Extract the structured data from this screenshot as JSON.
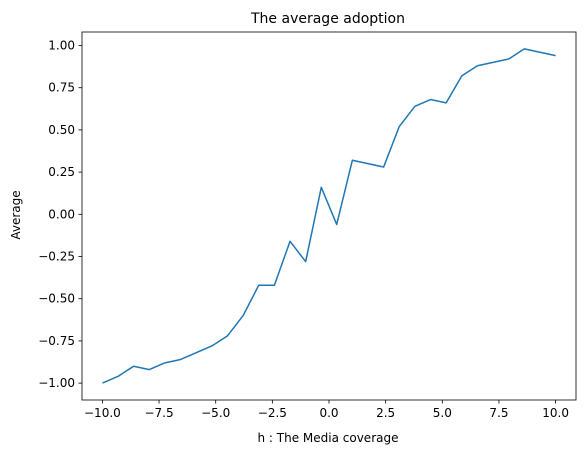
{
  "chart_data": {
    "type": "line",
    "title": "The average adoption",
    "xlabel": "h : The Media coverage",
    "ylabel": "Average",
    "xlim": [
      -10.9,
      10.9
    ],
    "ylim": [
      -1.1,
      1.08
    ],
    "grid": false,
    "x_ticks": [
      -10.0,
      -7.5,
      -5.0,
      -2.5,
      0.0,
      2.5,
      5.0,
      7.5,
      10.0
    ],
    "x_tick_labels": [
      "−10.0",
      "−7.5",
      "−5.0",
      "−2.5",
      "0.0",
      "2.5",
      "5.0",
      "7.5",
      "10.0"
    ],
    "y_ticks": [
      -1.0,
      -0.75,
      -0.5,
      -0.25,
      0.0,
      0.25,
      0.5,
      0.75,
      1.0
    ],
    "y_tick_labels": [
      "−1.00",
      "−0.75",
      "−0.50",
      "−0.25",
      "0.00",
      "0.25",
      "0.50",
      "0.75",
      "1.00"
    ],
    "series": [
      {
        "color": "#1f77b4",
        "x": [
          -10.0,
          -9.31,
          -8.62,
          -7.93,
          -7.24,
          -6.55,
          -5.86,
          -5.17,
          -4.48,
          -3.79,
          -3.1,
          -2.41,
          -1.72,
          -1.03,
          -0.34,
          0.34,
          1.03,
          1.72,
          2.41,
          3.1,
          3.79,
          4.48,
          5.17,
          5.86,
          6.55,
          7.24,
          7.93,
          8.62,
          9.31,
          10.0
        ],
        "y": [
          -1.0,
          -0.96,
          -0.9,
          -0.92,
          -0.88,
          -0.86,
          -0.82,
          -0.78,
          -0.72,
          -0.6,
          -0.42,
          -0.42,
          -0.16,
          -0.28,
          0.16,
          -0.06,
          0.32,
          0.3,
          0.28,
          0.52,
          0.64,
          0.68,
          0.66,
          0.82,
          0.88,
          0.9,
          0.92,
          0.98,
          0.96,
          0.94
        ]
      }
    ]
  }
}
